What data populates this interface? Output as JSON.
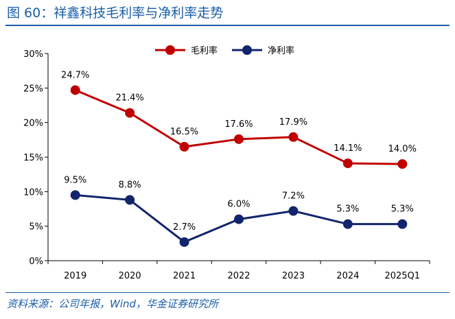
{
  "header": {
    "title": "图 60：祥鑫科技毛利率与净利率走势"
  },
  "footer": {
    "source": "资料来源：公司年报，Wind，华金证券研究所"
  },
  "colors": {
    "brand": "#1a5ea8",
    "gross": "#c00000",
    "net": "#12246b"
  },
  "chart_data": {
    "type": "line",
    "categories": [
      "2019",
      "2020",
      "2021",
      "2022",
      "2023",
      "2024",
      "2025Q1"
    ],
    "series": [
      {
        "name": "毛利率",
        "values": [
          24.7,
          21.4,
          16.5,
          17.6,
          17.9,
          14.1,
          14.0
        ],
        "labels": [
          "24.7%",
          "21.4%",
          "16.5%",
          "17.6%",
          "17.9%",
          "14.1%",
          "14.0%"
        ]
      },
      {
        "name": "净利率",
        "values": [
          9.5,
          8.8,
          2.7,
          6.0,
          7.2,
          5.3,
          5.3
        ],
        "labels": [
          "9.5%",
          "8.8%",
          "2.7%",
          "6.0%",
          "7.2%",
          "5.3%",
          "5.3%"
        ]
      }
    ],
    "ylim": [
      0,
      30
    ],
    "yticks": [
      0,
      5,
      10,
      15,
      20,
      25,
      30
    ],
    "ytick_labels": [
      "0%",
      "5%",
      "10%",
      "15%",
      "20%",
      "25%",
      "30%"
    ],
    "grid": false,
    "legend": "top-center"
  }
}
